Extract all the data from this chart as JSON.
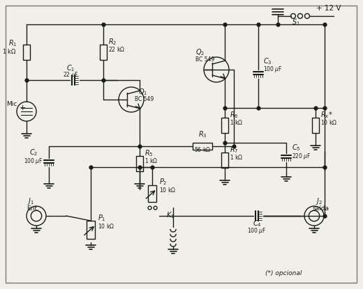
{
  "bg_color": "#f0efe8",
  "line_color": "#1a1a1a",
  "comp_color": "#1a1a1a",
  "text_color": "#1a1a1a",
  "border_color": "#666666",
  "note": "(*) opcional",
  "supply": "+ 12 V",
  "s1": "S₁"
}
